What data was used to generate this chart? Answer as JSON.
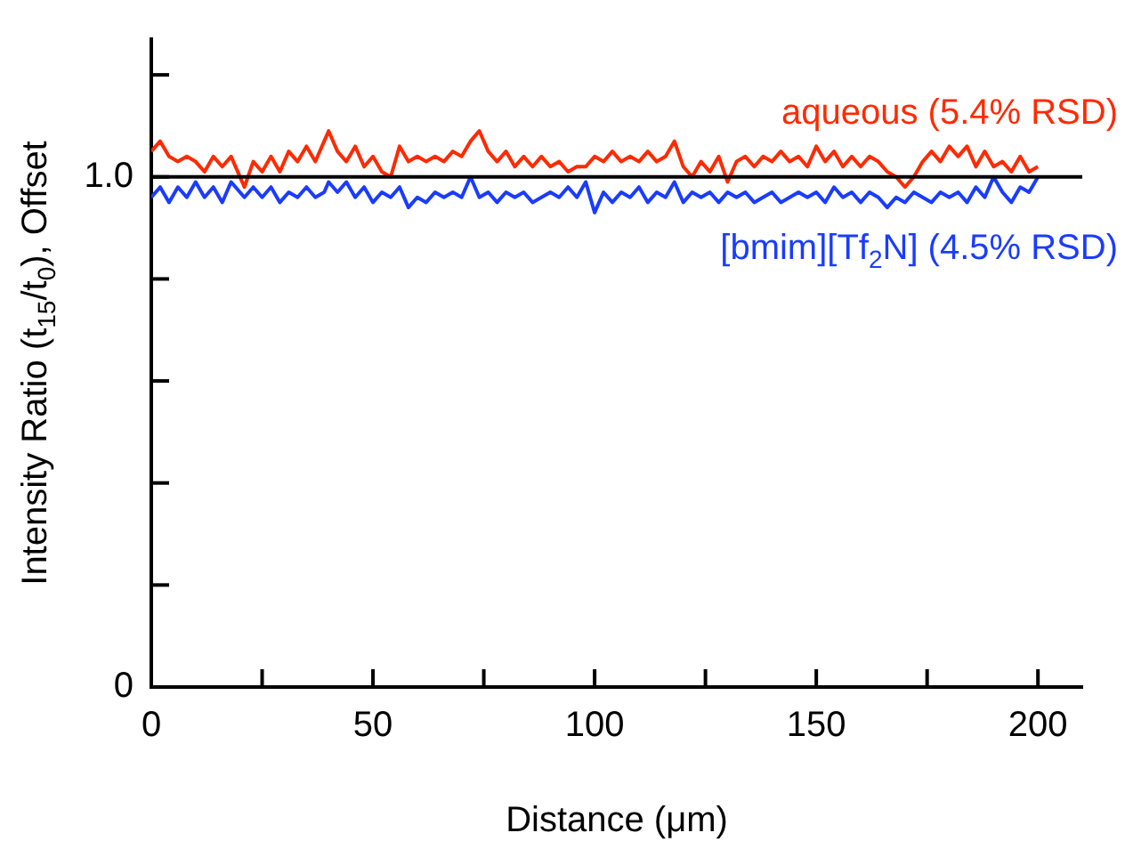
{
  "chart_data": {
    "type": "line",
    "xlabel": "Distance (μm)",
    "ylabel": "Intensity Ratio (t$_{15}$/t$_{0}$), Offset",
    "xlim": [
      0,
      210
    ],
    "ylim": [
      0,
      1.27
    ],
    "xticks": [
      0,
      {
        "value": 25,
        "label": null
      },
      50,
      {
        "value": 75,
        "label": null
      },
      100,
      {
        "value": 125,
        "label": null
      },
      150,
      {
        "value": 175,
        "label": null
      },
      200
    ],
    "yticks": [
      {
        "value": 0,
        "label": "0"
      },
      {
        "value": 0.2,
        "label": null
      },
      {
        "value": 0.4,
        "label": null
      },
      {
        "value": 0.6,
        "label": null
      },
      {
        "value": 0.8,
        "label": null
      },
      {
        "value": 1.0,
        "label": "1.0"
      },
      {
        "value": 1.2,
        "label": null
      }
    ],
    "x": [
      0,
      2,
      4,
      6,
      8,
      10,
      12,
      14,
      16,
      18,
      20,
      21,
      23,
      25,
      27,
      29,
      31,
      33,
      35,
      37,
      39,
      40,
      42,
      44,
      46,
      48,
      50,
      52,
      54,
      56,
      58,
      60,
      62,
      64,
      66,
      68,
      70,
      72,
      74,
      76,
      78,
      80,
      82,
      84,
      86,
      88,
      90,
      92,
      94,
      96,
      98,
      100,
      102,
      104,
      106,
      108,
      110,
      112,
      114,
      116,
      118,
      120,
      122,
      124,
      126,
      128,
      130,
      132,
      134,
      136,
      138,
      140,
      142,
      144,
      146,
      148,
      150,
      152,
      154,
      156,
      158,
      160,
      162,
      164,
      166,
      168,
      170,
      172,
      174,
      176,
      178,
      180,
      182,
      184,
      186,
      188,
      190,
      192,
      194,
      196,
      198,
      200
    ],
    "legend": false,
    "marker": "none",
    "line_style": "solid",
    "series": [
      {
        "name": "aqueous (5.4% RSD)",
        "color": "#ff2a00",
        "values": [
          1.05,
          1.07,
          1.04,
          1.03,
          1.04,
          1.03,
          1.01,
          1.04,
          1.02,
          1.04,
          1.0,
          0.98,
          1.03,
          1.01,
          1.04,
          1.01,
          1.05,
          1.03,
          1.06,
          1.03,
          1.07,
          1.09,
          1.05,
          1.03,
          1.06,
          1.02,
          1.04,
          1.01,
          1.0,
          1.06,
          1.03,
          1.04,
          1.03,
          1.04,
          1.03,
          1.05,
          1.04,
          1.07,
          1.09,
          1.05,
          1.03,
          1.05,
          1.02,
          1.04,
          1.02,
          1.04,
          1.02,
          1.03,
          1.01,
          1.02,
          1.02,
          1.04,
          1.03,
          1.05,
          1.03,
          1.04,
          1.03,
          1.05,
          1.03,
          1.04,
          1.07,
          1.02,
          1.0,
          1.03,
          1.01,
          1.04,
          0.99,
          1.03,
          1.04,
          1.02,
          1.04,
          1.03,
          1.05,
          1.03,
          1.04,
          1.02,
          1.06,
          1.03,
          1.05,
          1.02,
          1.04,
          1.02,
          1.04,
          1.03,
          1.01,
          1.0,
          0.98,
          1.0,
          1.03,
          1.05,
          1.03,
          1.06,
          1.04,
          1.06,
          1.02,
          1.05,
          1.02,
          1.03,
          1.01,
          1.04,
          1.01,
          1.02
        ]
      },
      {
        "name": "[bmim][Tf$_{2}$N] (4.5% RSD)",
        "color": "#1a3cff",
        "values": [
          0.96,
          0.98,
          0.95,
          0.98,
          0.96,
          0.99,
          0.96,
          0.98,
          0.95,
          0.99,
          0.97,
          0.96,
          0.98,
          0.96,
          0.98,
          0.95,
          0.97,
          0.96,
          0.98,
          0.96,
          0.97,
          0.99,
          0.97,
          0.99,
          0.96,
          0.98,
          0.95,
          0.97,
          0.96,
          0.98,
          0.94,
          0.96,
          0.95,
          0.97,
          0.96,
          0.97,
          0.96,
          1.0,
          0.96,
          0.97,
          0.95,
          0.97,
          0.96,
          0.97,
          0.95,
          0.96,
          0.97,
          0.96,
          0.98,
          0.96,
          0.99,
          0.93,
          0.97,
          0.95,
          0.97,
          0.96,
          0.98,
          0.95,
          0.97,
          0.96,
          0.99,
          0.95,
          0.97,
          0.96,
          0.97,
          0.95,
          0.97,
          0.96,
          0.97,
          0.95,
          0.96,
          0.97,
          0.95,
          0.96,
          0.97,
          0.96,
          0.97,
          0.95,
          0.98,
          0.96,
          0.97,
          0.95,
          0.97,
          0.96,
          0.94,
          0.96,
          0.95,
          0.97,
          0.96,
          0.95,
          0.97,
          0.96,
          0.97,
          0.95,
          0.98,
          0.96,
          1.0,
          0.97,
          0.95,
          0.98,
          0.97,
          1.0
        ]
      }
    ],
    "ref_lines": [
      {
        "axis": "y",
        "value": 1.0,
        "color": "#000000"
      }
    ]
  }
}
